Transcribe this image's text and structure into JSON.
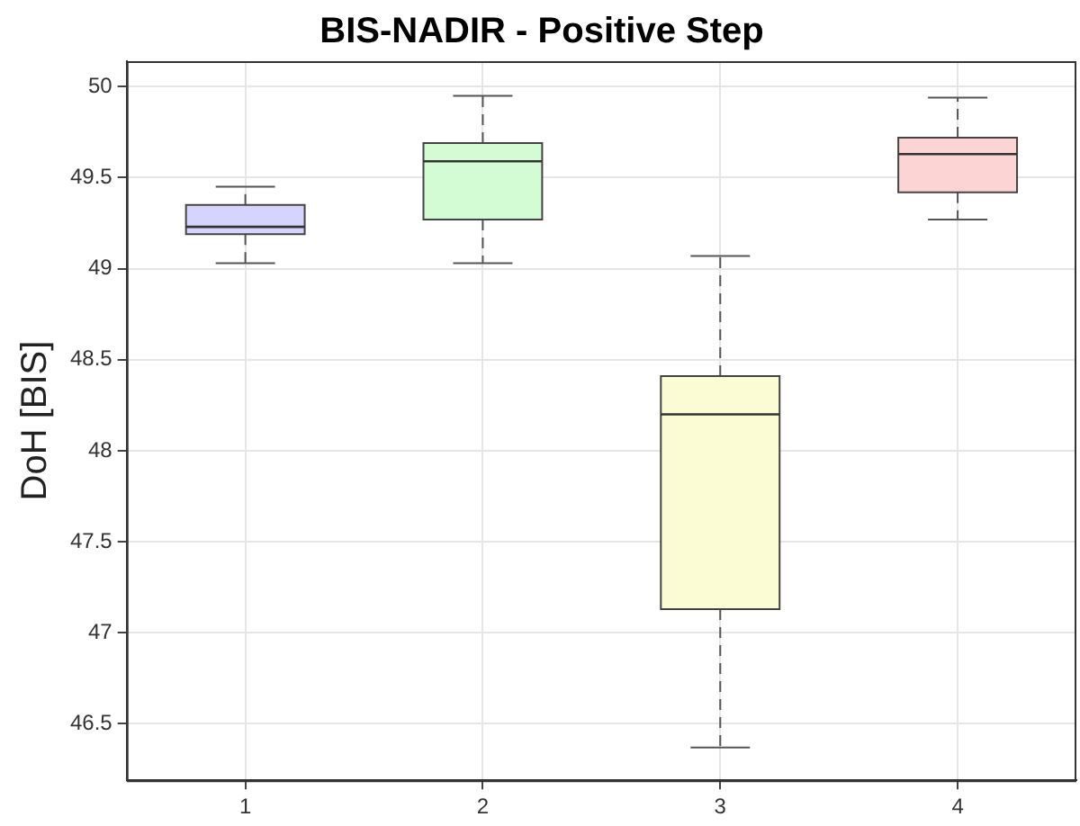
{
  "chart_data": {
    "type": "box",
    "title": "BIS-NADIR - Positive Step",
    "ylabel": "DoH [BIS]",
    "categories": [
      "1",
      "2",
      "3",
      "4"
    ],
    "boxes": [
      {
        "low": 49.03,
        "q1": 49.19,
        "median": 49.23,
        "q3": 49.35,
        "high": 49.45
      },
      {
        "low": 49.03,
        "q1": 49.27,
        "median": 49.59,
        "q3": 49.69,
        "high": 49.95
      },
      {
        "low": 46.37,
        "q1": 47.13,
        "median": 48.2,
        "q3": 48.41,
        "high": 49.07
      },
      {
        "low": 49.27,
        "q1": 49.42,
        "median": 49.63,
        "q3": 49.72,
        "high": 49.94
      }
    ],
    "colors": [
      "#d4d4fc",
      "#d4fcd4",
      "#fcfcd4",
      "#fcd4d4"
    ],
    "ylim": [
      46.19,
      50.14
    ],
    "yticks": [
      46.5,
      47,
      47.5,
      48,
      48.5,
      49,
      49.5,
      50
    ],
    "grid": true
  }
}
